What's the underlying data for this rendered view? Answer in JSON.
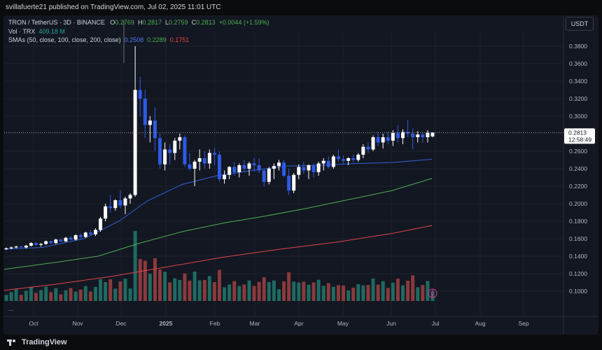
{
  "header": {
    "publish_text": "svillafuerte21 published on TradingView.com, Jul 02, 2025 11:01 UTC"
  },
  "legend": {
    "symbol": "TRON / TetherUS · 3D · BINANCE",
    "open_label": "O",
    "open": "0.2769",
    "high_label": "H",
    "high": "0.2817",
    "low_label": "L",
    "low": "0.2759",
    "close_label": "C",
    "close": "0.2813",
    "change": "+0.0044 (+1.59%)",
    "vol_label": "Vol · TRX",
    "vol_value": "409.18 M",
    "sma_label": "SMAs (50, close, 100, close, 200, close)",
    "sma50": "0.2508",
    "sma100": "0.2289",
    "sma200": "0.1751"
  },
  "currency": "USDT",
  "last_price": {
    "value": "0.2813",
    "countdown": "12:58:49"
  },
  "footer": {
    "brand": "TradingView",
    "more": "..."
  },
  "colors": {
    "background": "#131722",
    "up_candle": "#ffffff",
    "down_candle": "#2e5be6",
    "volume_up": "#1f6a61",
    "volume_down": "#8b3a3c",
    "sma50": "#2f62d8",
    "sma100": "#4caf50",
    "sma200": "#e2454a",
    "grid": "#1e222d"
  },
  "chart_data": {
    "type": "candlestick",
    "symbol": "TRON / TetherUS",
    "interval": "3D",
    "ylim": [
      0.08,
      0.39
    ],
    "yticks": [
      "0.3800",
      "0.3600",
      "0.3400",
      "0.3200",
      "0.3000",
      "0.2800",
      "0.2600",
      "0.2400",
      "0.2200",
      "0.2000",
      "0.1800",
      "0.1600",
      "0.1400",
      "0.1200",
      "0.1000"
    ],
    "xticks": [
      "Oct",
      "Nov",
      "Dec",
      "2025",
      "Feb",
      "Mar",
      "Apr",
      "May",
      "Jun",
      "Jul",
      "Aug",
      "Sep"
    ],
    "last_price": 0.2813,
    "candles": [
      [
        0.148,
        0.15,
        0.147,
        0.149
      ],
      [
        0.149,
        0.151,
        0.148,
        0.15
      ],
      [
        0.15,
        0.152,
        0.149,
        0.151
      ],
      [
        0.151,
        0.152,
        0.15,
        0.15
      ],
      [
        0.15,
        0.153,
        0.149,
        0.152
      ],
      [
        0.152,
        0.156,
        0.151,
        0.155
      ],
      [
        0.155,
        0.156,
        0.152,
        0.153
      ],
      [
        0.153,
        0.155,
        0.151,
        0.154
      ],
      [
        0.154,
        0.158,
        0.153,
        0.157
      ],
      [
        0.157,
        0.158,
        0.154,
        0.155
      ],
      [
        0.155,
        0.16,
        0.154,
        0.159
      ],
      [
        0.159,
        0.16,
        0.156,
        0.157
      ],
      [
        0.157,
        0.162,
        0.156,
        0.161
      ],
      [
        0.161,
        0.163,
        0.158,
        0.159
      ],
      [
        0.159,
        0.165,
        0.158,
        0.164
      ],
      [
        0.164,
        0.166,
        0.16,
        0.162
      ],
      [
        0.162,
        0.168,
        0.161,
        0.167
      ],
      [
        0.167,
        0.17,
        0.164,
        0.165
      ],
      [
        0.165,
        0.172,
        0.163,
        0.17
      ],
      [
        0.17,
        0.185,
        0.168,
        0.183
      ],
      [
        0.183,
        0.2,
        0.18,
        0.197
      ],
      [
        0.197,
        0.21,
        0.19,
        0.195
      ],
      [
        0.195,
        0.205,
        0.192,
        0.204
      ],
      [
        0.204,
        0.215,
        0.195,
        0.198
      ],
      [
        0.198,
        0.208,
        0.188,
        0.206
      ],
      [
        0.206,
        0.212,
        0.2,
        0.21
      ],
      [
        0.21,
        0.38,
        0.208,
        0.33
      ],
      [
        0.33,
        0.345,
        0.3,
        0.32
      ],
      [
        0.32,
        0.33,
        0.275,
        0.29
      ],
      [
        0.29,
        0.3,
        0.27,
        0.295
      ],
      [
        0.295,
        0.31,
        0.26,
        0.275
      ],
      [
        0.275,
        0.28,
        0.24,
        0.245
      ],
      [
        0.245,
        0.27,
        0.238,
        0.262
      ],
      [
        0.262,
        0.268,
        0.245,
        0.258
      ],
      [
        0.258,
        0.275,
        0.25,
        0.272
      ],
      [
        0.272,
        0.28,
        0.262,
        0.276
      ],
      [
        0.276,
        0.278,
        0.242,
        0.245
      ],
      [
        0.245,
        0.258,
        0.238,
        0.24
      ],
      [
        0.24,
        0.25,
        0.22,
        0.248
      ],
      [
        0.248,
        0.262,
        0.238,
        0.252
      ],
      [
        0.252,
        0.26,
        0.24,
        0.246
      ],
      [
        0.246,
        0.262,
        0.24,
        0.258
      ],
      [
        0.258,
        0.264,
        0.244,
        0.256
      ],
      [
        0.256,
        0.26,
        0.225,
        0.228
      ],
      [
        0.228,
        0.238,
        0.223,
        0.233
      ],
      [
        0.233,
        0.243,
        0.228,
        0.242
      ],
      [
        0.242,
        0.248,
        0.232,
        0.236
      ],
      [
        0.236,
        0.246,
        0.23,
        0.244
      ],
      [
        0.244,
        0.25,
        0.236,
        0.24
      ],
      [
        0.24,
        0.248,
        0.232,
        0.246
      ],
      [
        0.246,
        0.252,
        0.237,
        0.244
      ],
      [
        0.244,
        0.252,
        0.235,
        0.238
      ],
      [
        0.238,
        0.24,
        0.22,
        0.225
      ],
      [
        0.225,
        0.242,
        0.222,
        0.24
      ],
      [
        0.24,
        0.246,
        0.228,
        0.243
      ],
      [
        0.243,
        0.25,
        0.238,
        0.247
      ],
      [
        0.247,
        0.25,
        0.23,
        0.232
      ],
      [
        0.232,
        0.24,
        0.21,
        0.215
      ],
      [
        0.215,
        0.235,
        0.212,
        0.233
      ],
      [
        0.233,
        0.245,
        0.228,
        0.242
      ],
      [
        0.242,
        0.248,
        0.234,
        0.238
      ],
      [
        0.238,
        0.245,
        0.228,
        0.244
      ],
      [
        0.244,
        0.246,
        0.23,
        0.236
      ],
      [
        0.236,
        0.248,
        0.232,
        0.246
      ],
      [
        0.246,
        0.252,
        0.238,
        0.249
      ],
      [
        0.249,
        0.254,
        0.24,
        0.242
      ],
      [
        0.242,
        0.256,
        0.24,
        0.254
      ],
      [
        0.254,
        0.262,
        0.248,
        0.251
      ],
      [
        0.251,
        0.255,
        0.246,
        0.249
      ],
      [
        0.249,
        0.253,
        0.244,
        0.252
      ],
      [
        0.252,
        0.256,
        0.247,
        0.25
      ],
      [
        0.25,
        0.258,
        0.248,
        0.256
      ],
      [
        0.256,
        0.268,
        0.252,
        0.265
      ],
      [
        0.265,
        0.27,
        0.258,
        0.262
      ],
      [
        0.262,
        0.278,
        0.26,
        0.276
      ],
      [
        0.276,
        0.282,
        0.266,
        0.27
      ],
      [
        0.27,
        0.28,
        0.263,
        0.276
      ],
      [
        0.276,
        0.282,
        0.268,
        0.272
      ],
      [
        0.272,
        0.284,
        0.266,
        0.281
      ],
      [
        0.281,
        0.29,
        0.27,
        0.275
      ],
      [
        0.275,
        0.285,
        0.268,
        0.282
      ],
      [
        0.282,
        0.296,
        0.276,
        0.28
      ],
      [
        0.28,
        0.286,
        0.262,
        0.276
      ],
      [
        0.276,
        0.283,
        0.27,
        0.279
      ],
      [
        0.279,
        0.282,
        0.27,
        0.276
      ],
      [
        0.276,
        0.284,
        0.27,
        0.281
      ],
      [
        0.2769,
        0.2817,
        0.2759,
        0.2813
      ]
    ],
    "volume_color_up": "#1f6a61",
    "volume_color_down": "#8b3a3c",
    "sma50": {
      "name": "SMA 50",
      "value": 0.2508
    },
    "sma100": {
      "name": "SMA 100",
      "value": 0.2289
    },
    "sma200": {
      "name": "SMA 200",
      "value": 0.1751
    }
  }
}
